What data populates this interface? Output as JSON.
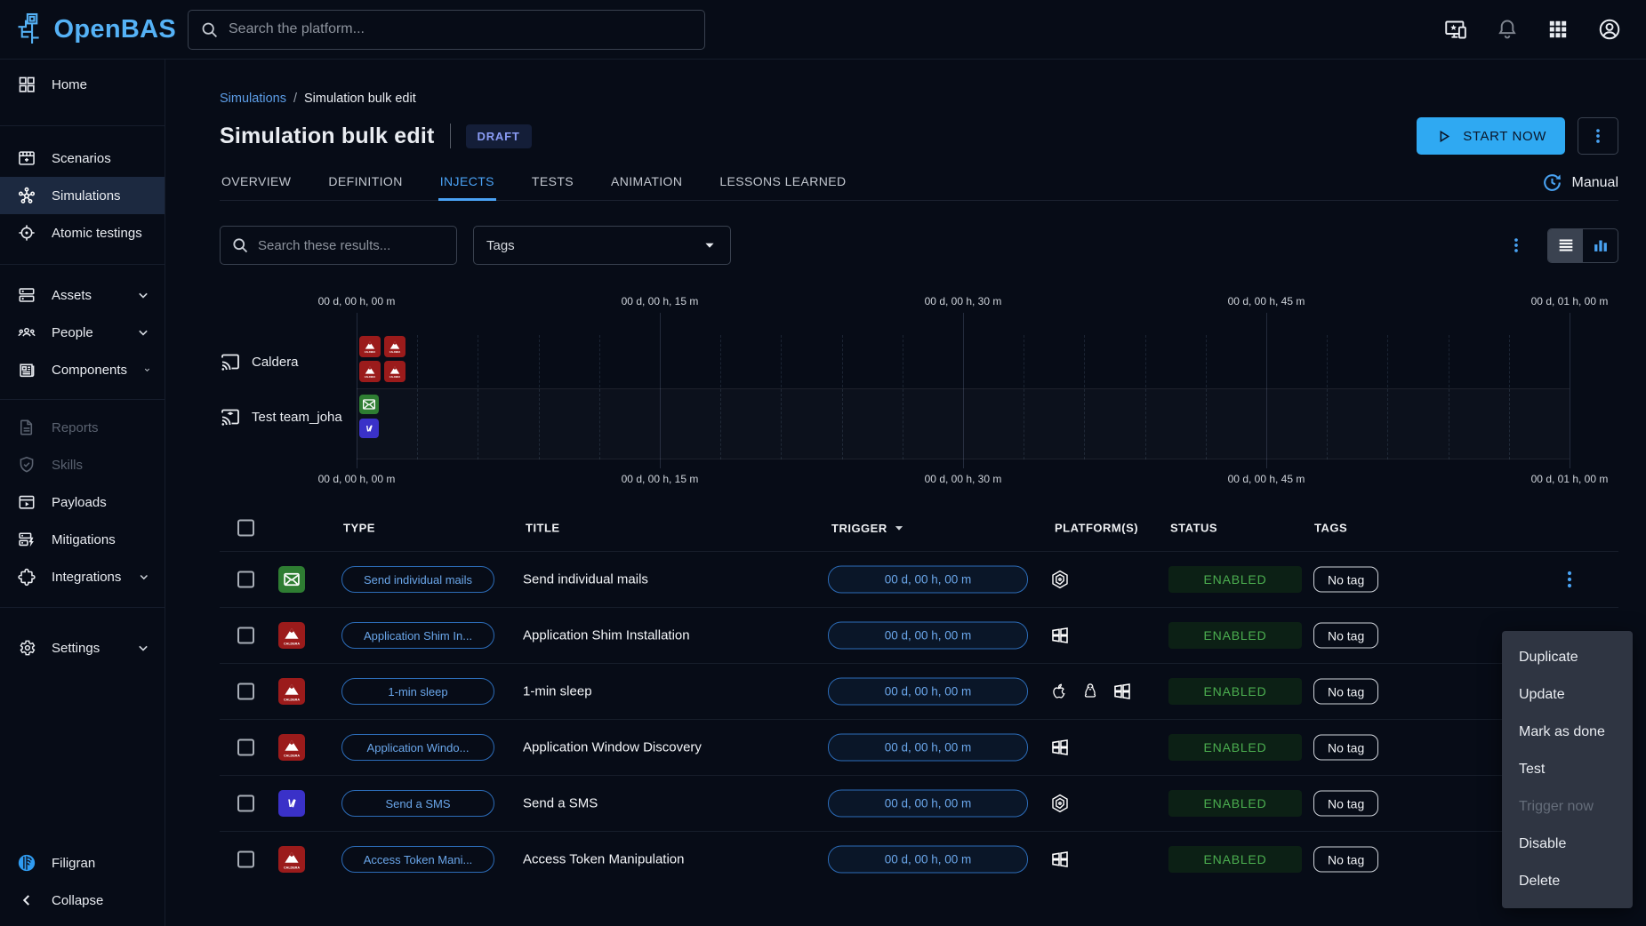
{
  "topbar": {
    "search_placeholder": "Search the platform...",
    "logo_text": "OpenBAS"
  },
  "sidebar": {
    "items": [
      {
        "label": "Home"
      },
      {
        "label": "Scenarios"
      },
      {
        "label": "Simulations",
        "selected": true
      },
      {
        "label": "Atomic testings"
      },
      {
        "label": "Assets",
        "expandable": true
      },
      {
        "label": "People",
        "expandable": true
      },
      {
        "label": "Components",
        "expandable": true
      },
      {
        "label": "Reports",
        "disabled": true
      },
      {
        "label": "Skills",
        "disabled": true
      },
      {
        "label": "Payloads"
      },
      {
        "label": "Mitigations"
      },
      {
        "label": "Integrations",
        "expandable": true
      },
      {
        "label": "Settings",
        "expandable": true
      }
    ],
    "footer": {
      "brand": "Filigran",
      "collapse": "Collapse"
    }
  },
  "header": {
    "breadcrumb": {
      "root": "Simulations",
      "sep": "/",
      "current": "Simulation bulk edit"
    },
    "title": "Simulation bulk edit",
    "status_badge": "DRAFT",
    "start_button": "START NOW",
    "mode_label": "Manual"
  },
  "tabs": {
    "items": [
      {
        "label": "OVERVIEW"
      },
      {
        "label": "DEFINITION"
      },
      {
        "label": "INJECTS",
        "active": true
      },
      {
        "label": "TESTS"
      },
      {
        "label": "ANIMATION"
      },
      {
        "label": "LESSONS LEARNED"
      }
    ]
  },
  "filters": {
    "search_placeholder": "Search these results...",
    "tags_label": "Tags"
  },
  "timeline": {
    "ticks": [
      "00 d, 00 h, 00 m",
      "00 d, 00 h, 15 m",
      "00 d, 00 h, 30 m",
      "00 d, 00 h, 45 m",
      "00 d, 01 h, 00 m"
    ],
    "rows": [
      {
        "label": "Caldera",
        "icon": "cast-icon"
      },
      {
        "label": "Test team_joha",
        "icon": "cast-connected-icon"
      }
    ]
  },
  "table": {
    "headers": [
      "TYPE",
      "TITLE",
      "TRIGGER",
      "PLATFORM(S)",
      "STATUS",
      "TAGS"
    ],
    "rows": [
      {
        "icon_kind": "email",
        "chip": "Send individual mails",
        "title": "Send individual mails",
        "trigger": "00 d, 00 h, 00 m",
        "platforms": [
          "internal"
        ],
        "status": "ENABLED",
        "tag": "No tag",
        "has_menu": true
      },
      {
        "icon_kind": "caldera",
        "chip": "Application Shim In...",
        "title": "Application Shim Installation",
        "trigger": "00 d, 00 h, 00 m",
        "platforms": [
          "windows"
        ],
        "status": "ENABLED",
        "tag": "No tag"
      },
      {
        "icon_kind": "caldera",
        "chip": "1-min sleep",
        "title": "1-min sleep",
        "trigger": "00 d, 00 h, 00 m",
        "platforms": [
          "apple",
          "linux",
          "windows"
        ],
        "status": "ENABLED",
        "tag": "No tag"
      },
      {
        "icon_kind": "caldera",
        "chip": "Application Windo...",
        "title": "Application Window Discovery",
        "trigger": "00 d, 00 h, 00 m",
        "platforms": [
          "windows"
        ],
        "status": "ENABLED",
        "tag": "No tag"
      },
      {
        "icon_kind": "ovh",
        "chip": "Send a SMS",
        "title": "Send a SMS",
        "trigger": "00 d, 00 h, 00 m",
        "platforms": [
          "internal"
        ],
        "status": "ENABLED",
        "tag": "No tag"
      },
      {
        "icon_kind": "caldera",
        "chip": "Access Token Mani...",
        "title": "Access Token Manipulation",
        "trigger": "00 d, 00 h, 00 m",
        "platforms": [
          "windows"
        ],
        "status": "ENABLED",
        "tag": "No tag"
      }
    ]
  },
  "context_menu": {
    "items": [
      {
        "label": "Duplicate"
      },
      {
        "label": "Update"
      },
      {
        "label": "Mark as done"
      },
      {
        "label": "Test"
      },
      {
        "label": "Trigger now",
        "disabled": true
      },
      {
        "label": "Disable"
      },
      {
        "label": "Delete"
      }
    ]
  },
  "colors": {
    "accent": "#2fa9f2",
    "link": "#5d9ee8",
    "active_tab": "#4aa2f5",
    "draft_text": "#8a9cf5",
    "enabled_green": "#4caf50",
    "caldera_red": "#9b1b1b",
    "email_green": "#2e7d32",
    "ovh_indigo": "#3a31c8"
  }
}
